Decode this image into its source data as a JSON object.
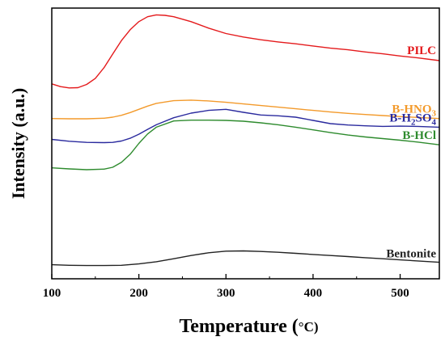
{
  "chart_data": {
    "type": "line",
    "xlabel": "Temperature (",
    "xlabel_unit": "°C)",
    "ylabel": "Intensity (a.u.)",
    "xlim": [
      100,
      545
    ],
    "ylim": [
      0,
      100
    ],
    "x_ticks": [
      "100",
      "200",
      "300",
      "400",
      "500"
    ],
    "y_ticks_shown": false,
    "grid": false,
    "legend": "inline labels at right end of each curve",
    "series": [
      {
        "name": "PILC",
        "label_main": "PILC",
        "label_sub": "",
        "label_tail": "",
        "color": "#e41a1c",
        "x": [
          100,
          110,
          120,
          130,
          140,
          150,
          160,
          170,
          180,
          190,
          200,
          210,
          220,
          230,
          240,
          260,
          280,
          300,
          320,
          340,
          360,
          380,
          400,
          420,
          440,
          460,
          480,
          500,
          520,
          545
        ],
        "y": [
          72.0,
          71.0,
          70.5,
          70.6,
          71.8,
          74.0,
          78.0,
          83.0,
          88.0,
          92.0,
          95.0,
          96.8,
          97.5,
          97.3,
          96.8,
          95.0,
          92.6,
          90.6,
          89.3,
          88.3,
          87.5,
          86.8,
          86.0,
          85.2,
          84.6,
          83.8,
          83.1,
          82.3,
          81.6,
          80.6
        ]
      },
      {
        "name": "B-HNO3",
        "label_main": "B-HNO",
        "label_sub": "3",
        "label_tail": "",
        "color": "#f39a2b",
        "x": [
          100,
          120,
          140,
          160,
          170,
          180,
          190,
          200,
          210,
          220,
          240,
          260,
          280,
          300,
          320,
          340,
          360,
          380,
          400,
          420,
          440,
          460,
          480,
          500,
          520,
          545
        ],
        "y": [
          59.2,
          59.1,
          59.1,
          59.3,
          59.7,
          60.4,
          61.4,
          62.6,
          63.8,
          64.8,
          65.8,
          66.0,
          65.7,
          65.2,
          64.6,
          64.0,
          63.4,
          62.8,
          62.2,
          61.6,
          61.1,
          60.7,
          60.3,
          59.9,
          59.6,
          59.2
        ]
      },
      {
        "name": "B-H2SO4",
        "label_main": "B-H",
        "label_sub": "2",
        "label_tail": "SO",
        "label_sub2": "4",
        "color": "#2a2a9e",
        "x": [
          100,
          120,
          140,
          160,
          170,
          180,
          190,
          200,
          210,
          220,
          240,
          260,
          280,
          300,
          320,
          340,
          360,
          380,
          400,
          420,
          440,
          460,
          480,
          500,
          520,
          545
        ],
        "y": [
          51.5,
          50.8,
          50.4,
          50.3,
          50.4,
          50.9,
          51.9,
          53.4,
          55.2,
          56.9,
          59.5,
          61.2,
          62.2,
          62.6,
          61.5,
          60.5,
          60.2,
          59.7,
          58.5,
          57.3,
          56.8,
          56.5,
          56.3,
          56.4,
          56.3,
          56.0
        ]
      },
      {
        "name": "B-HCl",
        "label_main": "B-HCl",
        "label_sub": "",
        "label_tail": "",
        "color": "#2e8b2e",
        "x": [
          100,
          120,
          140,
          160,
          170,
          180,
          190,
          200,
          210,
          220,
          240,
          260,
          280,
          300,
          320,
          340,
          360,
          380,
          400,
          420,
          440,
          460,
          480,
          500,
          520,
          545
        ],
        "y": [
          41.0,
          40.6,
          40.3,
          40.5,
          41.2,
          43.0,
          46.0,
          50.0,
          53.5,
          56.0,
          58.3,
          58.6,
          58.6,
          58.5,
          58.2,
          57.6,
          56.9,
          56.0,
          55.0,
          54.0,
          53.1,
          52.4,
          51.8,
          51.2,
          50.5,
          49.5
        ]
      },
      {
        "name": "Bentonite",
        "label_main": "Bentonite",
        "label_sub": "",
        "label_tail": "",
        "color": "#222222",
        "x": [
          100,
          120,
          140,
          160,
          180,
          200,
          220,
          240,
          260,
          280,
          300,
          320,
          340,
          360,
          380,
          400,
          420,
          440,
          460,
          480,
          500,
          520,
          545
        ],
        "y": [
          5.2,
          5.0,
          4.9,
          4.9,
          5.0,
          5.5,
          6.3,
          7.4,
          8.6,
          9.6,
          10.2,
          10.3,
          10.1,
          9.8,
          9.4,
          9.0,
          8.6,
          8.2,
          7.8,
          7.4,
          7.0,
          6.6,
          6.1
        ]
      }
    ]
  }
}
